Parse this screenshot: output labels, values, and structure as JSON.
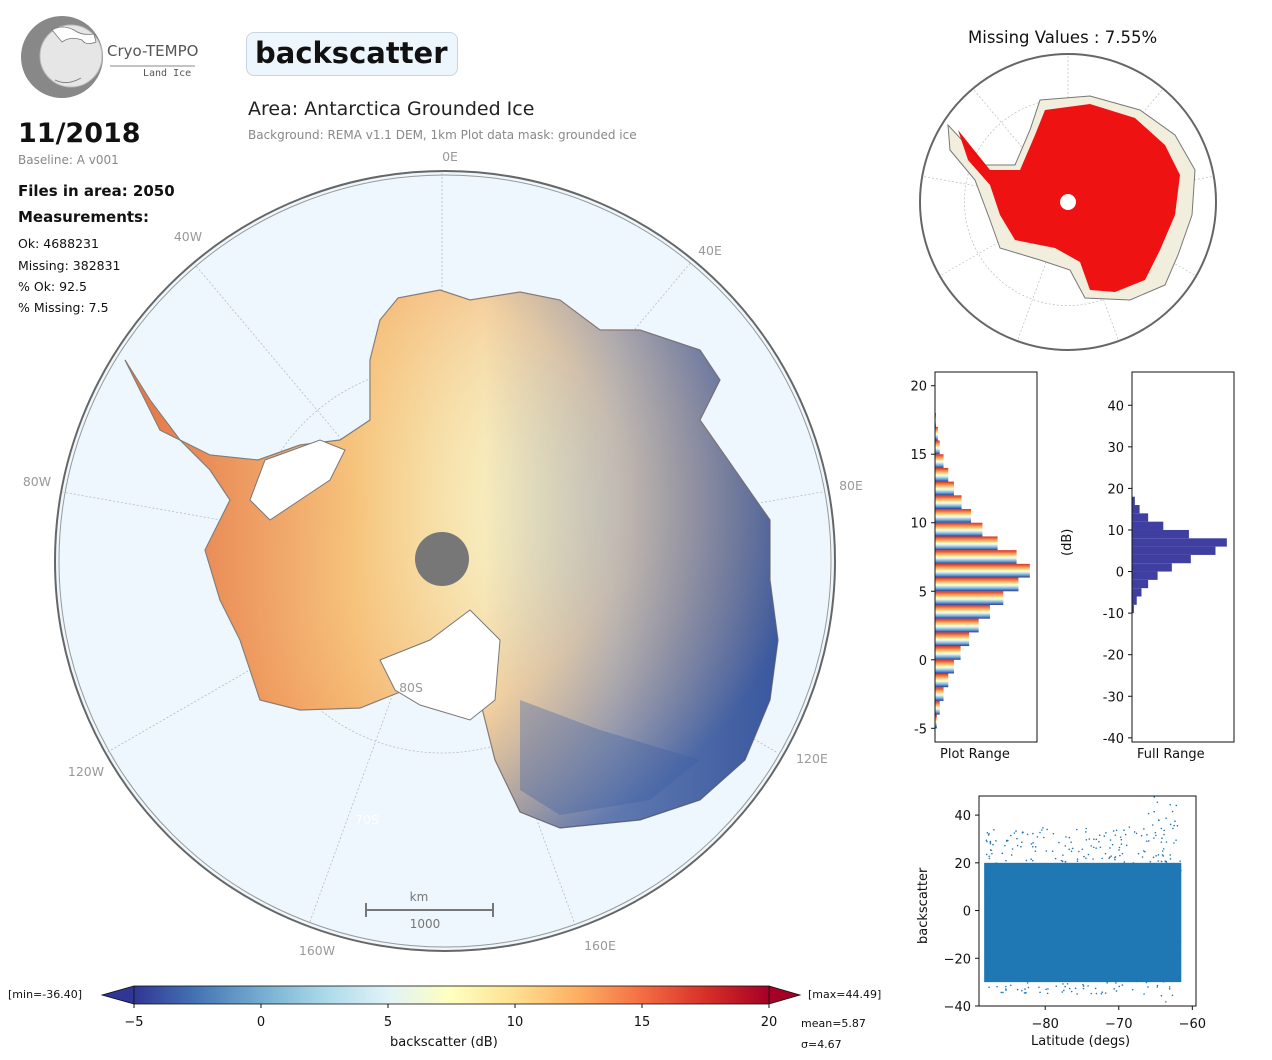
{
  "logo": {
    "name": "Cryo-TEMPO",
    "subtitle": "Land Ice"
  },
  "title": "backscatter",
  "area_title": "Area: Antarctica Grounded Ice",
  "background_note": "Background: REMA v1.1 DEM, 1km   Plot data mask: grounded ice",
  "date": "11/2018",
  "baseline": "Baseline: A v001",
  "files_in_area": "Files in area: 2050",
  "measurements_title": "Measurements:",
  "stats": [
    "Ok: 4688231",
    "Missing: 382831",
    "% Ok: 92.5",
    "% Missing: 7.5"
  ],
  "missing_title": "Missing Values : 7.55%",
  "colors": {
    "ocean": "#eef7fd",
    "grid": "#bbbbbb",
    "missing": "#ee0000",
    "land": "#f2eede",
    "hist_full": "#3f3fa1",
    "scatter": "#1f77b4"
  },
  "chart_data": [
    {
      "type": "heatmap",
      "name": "main-map",
      "projection": "south polar stereographic",
      "lon_labels": [
        "0E",
        "40E",
        "80E",
        "120E",
        "160E",
        "160W",
        "120W",
        "80W",
        "40W"
      ],
      "lat_labels": [
        "80S",
        "70S"
      ],
      "scale_bar": {
        "unit": "km",
        "value": "1000"
      },
      "colorbar": {
        "label": "backscatter (dB)",
        "ticks": [
          -5,
          0,
          5,
          10,
          15,
          20
        ],
        "range": [
          -5,
          20
        ],
        "min_label": "[min=-36.40]",
        "max_label": "[max=44.49]",
        "mean_label": "mean=5.87",
        "sigma_label": "σ=4.67",
        "colormap": "RdYlBu_r"
      }
    },
    {
      "type": "bar",
      "name": "hist-plot-range",
      "xlabel": "Plot Range",
      "orientation": "horizontal",
      "ylim": [
        -6,
        21
      ],
      "yticks": [
        -5,
        0,
        5,
        10,
        15,
        20
      ],
      "bins": [
        -5,
        -4,
        -3,
        -2,
        -1,
        0,
        1,
        2,
        3,
        4,
        5,
        6,
        7,
        8,
        9,
        10,
        11,
        12,
        13,
        14,
        15,
        16,
        17
      ],
      "values": [
        0.02,
        0.05,
        0.09,
        0.14,
        0.2,
        0.27,
        0.36,
        0.46,
        0.58,
        0.72,
        0.88,
        1.0,
        0.86,
        0.66,
        0.5,
        0.38,
        0.28,
        0.2,
        0.14,
        0.09,
        0.05,
        0.03,
        0.01
      ]
    },
    {
      "type": "bar",
      "name": "hist-full-range",
      "xlabel": "Full Range",
      "ylabel": "(dB)",
      "orientation": "horizontal",
      "ylim": [
        -41,
        48
      ],
      "yticks": [
        -40,
        -30,
        -20,
        -10,
        0,
        10,
        20,
        30,
        40
      ],
      "bins": [
        -10,
        -8,
        -6,
        -4,
        -2,
        0,
        2,
        4,
        6,
        8,
        10,
        12,
        14,
        16
      ],
      "values": [
        0.02,
        0.05,
        0.1,
        0.17,
        0.27,
        0.42,
        0.62,
        0.88,
        1.0,
        0.6,
        0.33,
        0.17,
        0.08,
        0.03
      ]
    },
    {
      "type": "scatter",
      "name": "scatter-latitude",
      "xlabel": "Latitude (degs)",
      "ylabel": "backscatter",
      "xlim": [
        -89,
        -59.5
      ],
      "ylim": [
        -40,
        48
      ],
      "xticks": [
        -80,
        -70,
        -60
      ],
      "yticks": [
        -40,
        -20,
        0,
        20,
        40
      ]
    }
  ]
}
